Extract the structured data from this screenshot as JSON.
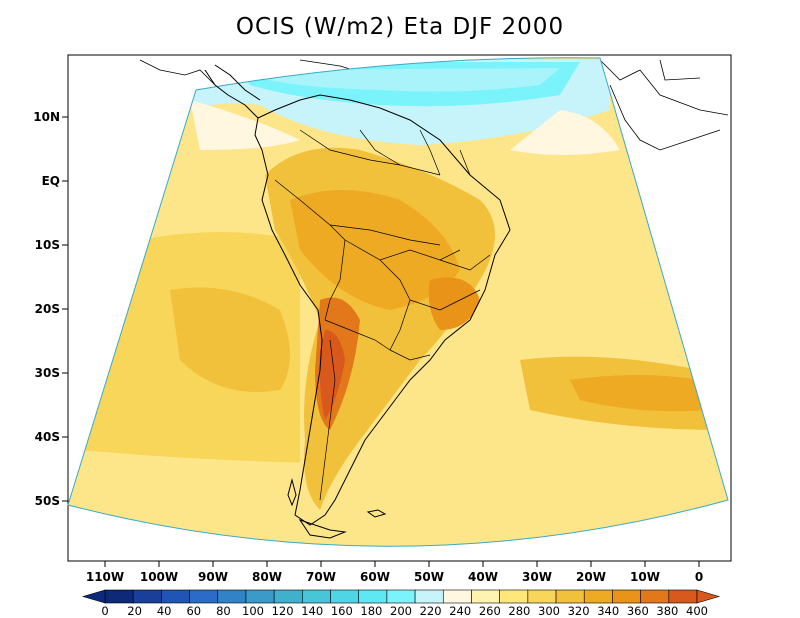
{
  "title": "OCIS (W/m2) Eta DJF 2000",
  "y_axis_labels": [
    "10N",
    "EQ",
    "10S",
    "20S",
    "30S",
    "40S",
    "50S"
  ],
  "x_axis_labels": [
    "110W",
    "100W",
    "90W",
    "80W",
    "70W",
    "60W",
    "50W",
    "40W",
    "30W",
    "20W",
    "10W",
    "0"
  ],
  "colorbar": {
    "labels": [
      "0",
      "20",
      "40",
      "60",
      "80",
      "100",
      "120",
      "140",
      "160",
      "180",
      "200",
      "220",
      "240",
      "260",
      "280",
      "300",
      "320",
      "340",
      "360",
      "380",
      "400"
    ],
    "colors": [
      "#0c2a78",
      "#1a3f9a",
      "#1f55b5",
      "#2a6cc8",
      "#3183c8",
      "#3a9ac8",
      "#3fb1cc",
      "#47c6d8",
      "#4fd6e6",
      "#5de8f4",
      "#7af4fa",
      "#c6f4fa",
      "#fff7e0",
      "#fff3b0",
      "#ffe77a",
      "#f8d65a",
      "#f2c13c",
      "#edaa22",
      "#e99318",
      "#e3781a",
      "#d9581c"
    ]
  }
}
